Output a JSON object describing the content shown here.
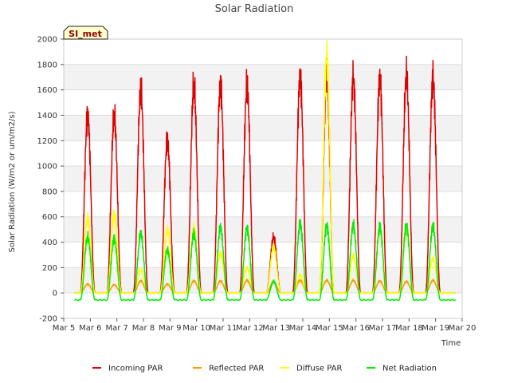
{
  "chart_data": {
    "type": "line",
    "title": "Solar Radiation",
    "xlabel": "Time",
    "ylabel": "Solar Radiation (W/m2 or um/m2/s)",
    "site_label": "SI_met",
    "xlim": [
      5,
      20
    ],
    "ylim": [
      -200,
      2000
    ],
    "x_ticks": [
      5,
      6,
      7,
      8,
      9,
      10,
      11,
      12,
      13,
      14,
      15,
      16,
      17,
      18,
      19,
      20
    ],
    "x_tick_labels": [
      "Mar 5",
      "Mar 6",
      "Mar 7",
      "Mar 8",
      "Mar 9",
      "Mar 10",
      "Mar 11",
      "Mar 12",
      "Mar 13",
      "Mar 14",
      "Mar 15",
      "Mar 16",
      "Mar 17",
      "Mar 18",
      "Mar 19",
      "Mar 20"
    ],
    "y_ticks": [
      -200,
      0,
      200,
      400,
      600,
      800,
      1000,
      1200,
      1400,
      1600,
      1800,
      2000
    ],
    "x_range_plotted": [
      5.4,
      19.75
    ],
    "days": [
      5.9,
      6.9,
      7.9,
      8.9,
      9.9,
      10.9,
      11.9,
      12.9,
      13.9,
      14.9,
      15.9,
      16.9,
      17.9,
      18.9
    ],
    "series": [
      {
        "name": "Incoming PAR",
        "color": "#dd0000",
        "day_peaks": [
          1410,
          1400,
          1610,
          1210,
          1640,
          1650,
          1640,
          440,
          1710,
          1700,
          1690,
          1690,
          1710,
          1700
        ],
        "night_value": 0
      },
      {
        "name": "Reflected PAR",
        "color": "#ff9900",
        "day_peaks": [
          70,
          65,
          95,
          70,
          95,
          95,
          100,
          90,
          100,
          100,
          100,
          95,
          90,
          100
        ],
        "night_value": 0
      },
      {
        "name": "Diffuse PAR",
        "color": "#ffff00",
        "day_peaks": [
          590,
          620,
          180,
          500,
          510,
          310,
          200,
          360,
          140,
          1860,
          290,
          500,
          500,
          270
        ],
        "night_value": 0
      },
      {
        "name": "Net Radiation",
        "color": "#00ee00",
        "day_peaks": [
          440,
          430,
          465,
          340,
          470,
          510,
          510,
          90,
          540,
          530,
          530,
          520,
          530,
          520
        ],
        "night_value": -55
      }
    ],
    "legend_position": "bottom",
    "grid": "horizontal bands"
  }
}
